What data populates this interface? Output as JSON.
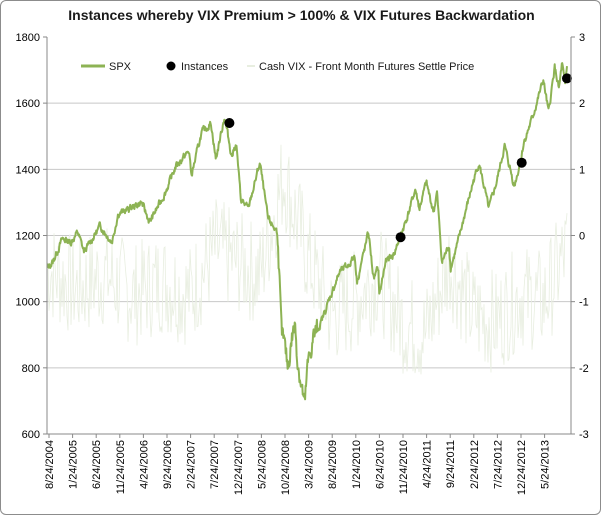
{
  "chart_data": {
    "type": "line",
    "title": "Instances whereby VIX Premium > 100% & VIX Futures Backwardation",
    "xlabel": "",
    "ylabel": "",
    "x_tick_labels": [
      "8/24/2004",
      "1/24/2005",
      "6/24/2005",
      "11/24/2005",
      "4/24/2006",
      "9/24/2006",
      "2/24/2007",
      "7/24/2007",
      "12/24/2007",
      "5/24/2008",
      "10/24/2008",
      "3/24/2009",
      "8/24/2009",
      "1/24/2010",
      "6/24/2010",
      "11/24/2010",
      "4/24/2011",
      "9/24/2011",
      "2/24/2012",
      "7/24/2012",
      "12/24/2012",
      "5/24/2013"
    ],
    "ylim_left": [
      600,
      1800
    ],
    "y_ticks_left": [
      600,
      800,
      1000,
      1200,
      1400,
      1600,
      1800
    ],
    "ylim_right": [
      -3,
      3
    ],
    "y_ticks_right": [
      -3,
      -2,
      -1,
      0,
      1,
      2,
      3
    ],
    "grid": "horizontal",
    "legend_placement": "top-left",
    "series": [
      {
        "name": "SPX",
        "axis": "left",
        "color": "#8db354",
        "style": "line",
        "x": [
          "2004-08-24",
          "2004-10-01",
          "2004-12-01",
          "2005-01-24",
          "2005-03-10",
          "2005-04-20",
          "2005-06-24",
          "2005-08-01",
          "2005-10-15",
          "2005-11-24",
          "2006-02-01",
          "2006-04-24",
          "2006-06-15",
          "2006-09-24",
          "2006-12-01",
          "2007-02-24",
          "2007-03-10",
          "2007-05-15",
          "2007-07-15",
          "2007-08-15",
          "2007-10-09",
          "2007-11-25",
          "2007-12-24",
          "2008-01-22",
          "2008-03-10",
          "2008-05-24",
          "2008-07-15",
          "2008-09-15",
          "2008-10-10",
          "2008-10-24",
          "2008-11-20",
          "2008-12-15",
          "2009-01-06",
          "2009-01-20",
          "2009-03-09",
          "2009-03-24",
          "2009-05-01",
          "2009-06-15",
          "2009-08-24",
          "2009-10-20",
          "2009-12-15",
          "2010-01-24",
          "2010-02-08",
          "2010-04-23",
          "2010-05-25",
          "2010-06-24",
          "2010-07-02",
          "2010-08-10",
          "2010-09-30",
          "2010-11-15",
          "2010-12-31",
          "2011-02-18",
          "2011-03-16",
          "2011-04-29",
          "2011-06-15",
          "2011-07-07",
          "2011-08-08",
          "2011-09-24",
          "2011-10-03",
          "2011-11-25",
          "2011-12-31",
          "2012-02-24",
          "2012-04-02",
          "2012-06-04",
          "2012-07-24",
          "2012-09-14",
          "2012-11-15",
          "2012-12-24",
          "2013-01-15",
          "2013-03-15",
          "2013-05-21",
          "2013-06-24",
          "2013-08-02",
          "2013-08-30",
          "2013-09-18",
          "2013-10-08",
          "2013-10-20"
        ],
        "values": [
          1100,
          1120,
          1190,
          1180,
          1210,
          1150,
          1200,
          1230,
          1180,
          1265,
          1280,
          1300,
          1240,
          1330,
          1410,
          1455,
          1380,
          1510,
          1540,
          1430,
          1560,
          1440,
          1480,
          1310,
          1280,
          1420,
          1250,
          1210,
          900,
          880,
          800,
          890,
          930,
          830,
          680,
          790,
          890,
          930,
          1020,
          1090,
          1110,
          1140,
          1060,
          1210,
          1070,
          1100,
          1020,
          1120,
          1140,
          1200,
          1260,
          1340,
          1280,
          1360,
          1270,
          1330,
          1120,
          1170,
          1100,
          1190,
          1260,
          1360,
          1420,
          1280,
          1360,
          1470,
          1350,
          1420,
          1480,
          1560,
          1670,
          1570,
          1710,
          1640,
          1720,
          1650,
          1710
        ]
      },
      {
        "name": "Instances",
        "axis": "left",
        "color": "#000000",
        "style": "marker",
        "x": [
          "2007-11-10",
          "2010-11-15",
          "2013-01-02",
          "2013-10-20"
        ],
        "values": [
          1540,
          1195,
          1420,
          1675
        ]
      },
      {
        "name": "Cash VIX - Front Month Futures Settle Price",
        "axis": "right",
        "color": "#e8eee0",
        "style": "line",
        "x": [
          "2004-08-24",
          "2005-03-01",
          "2005-09-01",
          "2006-03-01",
          "2006-09-01",
          "2007-03-01",
          "2007-08-15",
          "2007-12-24",
          "2008-05-24",
          "2008-10-24",
          "2009-03-24",
          "2009-08-24",
          "2010-01-24",
          "2010-06-24",
          "2010-11-24",
          "2011-04-24",
          "2011-09-24",
          "2012-02-24",
          "2012-07-24",
          "2012-12-24",
          "2013-05-24",
          "2013-10-20"
        ],
        "values": [
          -0.5,
          -0.8,
          -0.6,
          -0.9,
          -0.7,
          -0.9,
          -0.2,
          -0.4,
          -0.6,
          0.9,
          -0.3,
          -1.2,
          -1.0,
          -0.6,
          -1.3,
          -1.5,
          -0.4,
          -1.2,
          -1.3,
          -0.9,
          -1.0,
          -0.2
        ]
      }
    ]
  }
}
